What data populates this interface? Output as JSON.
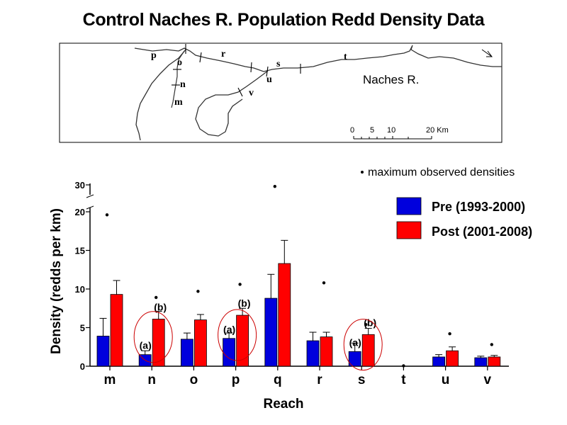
{
  "title": "Control Naches R. Population Redd Density Data",
  "map": {
    "river_name": "Naches R.",
    "scale_labels": [
      "0",
      "5",
      "10",
      "20 Km"
    ],
    "reach_labels": [
      "p",
      "o",
      "n",
      "m",
      "r",
      "s",
      "u",
      "v",
      "t"
    ]
  },
  "legend": {
    "max_note": "maximum observed densities",
    "items": [
      {
        "label": "Pre (1993-2000)",
        "color": "#0000dd"
      },
      {
        "label": "Post (2001-2008)",
        "color": "#ff0000"
      }
    ]
  },
  "chart_data": {
    "type": "bar",
    "xlabel": "Reach",
    "ylabel": "Density (redds per km)",
    "categories": [
      "m",
      "n",
      "o",
      "p",
      "q",
      "r",
      "s",
      "t",
      "u",
      "v"
    ],
    "y_ticks": [
      "0",
      "5",
      "10",
      "15",
      "20",
      "30"
    ],
    "y_axis_break": [
      20,
      30
    ],
    "series": [
      {
        "name": "Pre (1993-2000)",
        "color": "#0000dd",
        "values": [
          3.9,
          1.5,
          3.5,
          3.6,
          8.8,
          3.3,
          1.9,
          0,
          1.2,
          1.1
        ],
        "error": [
          2.3,
          0.5,
          0.8,
          0.7,
          3.1,
          1.1,
          1.1,
          0,
          0.3,
          0.2
        ]
      },
      {
        "name": "Post (2001-2008)",
        "color": "#ff0000",
        "values": [
          9.3,
          6.1,
          6.0,
          6.6,
          13.3,
          3.8,
          4.1,
          null,
          2.0,
          1.2
        ],
        "error": [
          1.8,
          1.0,
          0.7,
          0.9,
          3.0,
          0.6,
          0.8,
          null,
          0.5,
          0.2
        ]
      }
    ],
    "max_observed": [
      19.6,
      8.9,
      9.7,
      10.6,
      29.8,
      10.8,
      5.4,
      0.05,
      4.2,
      2.8
    ],
    "annotations": [
      {
        "category": "n",
        "labels": [
          "(a)",
          "(b)"
        ],
        "circled": true
      },
      {
        "category": "p",
        "labels": [
          "(a)",
          "(b)"
        ],
        "circled": true
      },
      {
        "category": "s",
        "labels": [
          "(a)",
          "(b)"
        ],
        "circled": true
      }
    ]
  }
}
